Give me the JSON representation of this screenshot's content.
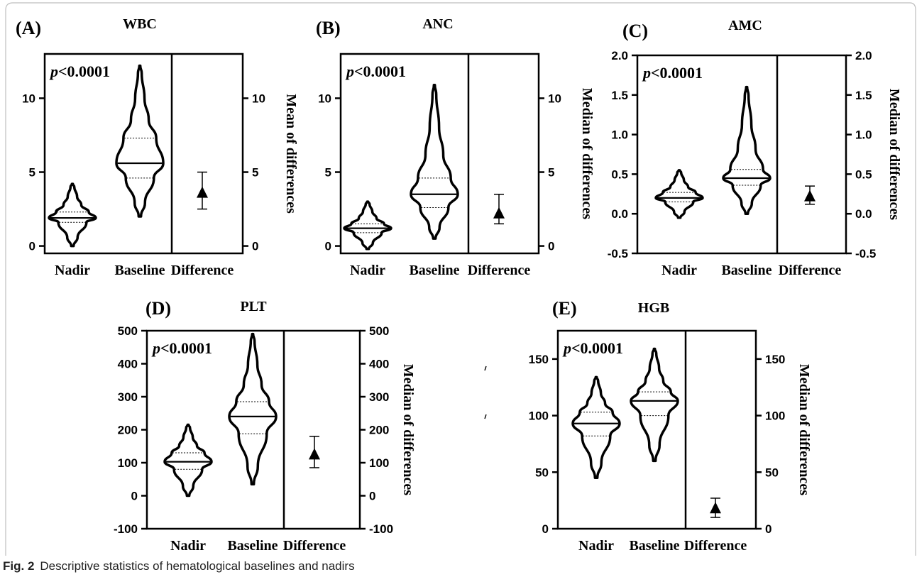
{
  "figure": {
    "caption_label": "Fig. 2",
    "caption_text": "Descriptive statistics of hematological baselines and nadirs"
  },
  "chart_data": [
    {
      "type": "violin",
      "panel": "(A)",
      "title": "WBC",
      "pvalue": "p<0.0001",
      "categories": [
        "Nadir",
        "Baseline",
        "Difference"
      ],
      "ylim": [
        -0.5,
        13
      ],
      "yticks": [
        0,
        5,
        10
      ],
      "right_ylabel": "Mean of differences",
      "violins": [
        {
          "name": "Nadir",
          "median": 1.9,
          "q1": 1.6,
          "q3": 2.3,
          "min": 0.0,
          "max": 4.2
        },
        {
          "name": "Baseline",
          "median": 5.6,
          "q1": 4.6,
          "q3": 7.3,
          "min": 2.0,
          "max": 12.2
        }
      ],
      "difference": {
        "mean": 3.6,
        "low": 2.5,
        "high": 5.0
      }
    },
    {
      "type": "violin",
      "panel": "(B)",
      "title": "ANC",
      "pvalue": "p<0.0001",
      "categories": [
        "Nadir",
        "Baseline",
        "Difference"
      ],
      "ylim": [
        -0.5,
        13
      ],
      "yticks": [
        0,
        5,
        10
      ],
      "right_ylabel": "Median of differences",
      "violins": [
        {
          "name": "Nadir",
          "median": 1.2,
          "q1": 0.9,
          "q3": 1.5,
          "min": -0.2,
          "max": 3.0
        },
        {
          "name": "Baseline",
          "median": 3.5,
          "q1": 2.6,
          "q3": 4.6,
          "min": 0.5,
          "max": 10.9
        }
      ],
      "difference": {
        "mean": 2.2,
        "low": 1.5,
        "high": 3.5
      }
    },
    {
      "type": "violin",
      "panel": "(C)",
      "title": "AMC",
      "pvalue": "p<0.0001",
      "categories": [
        "Nadir",
        "Baseline",
        "Difference"
      ],
      "ylim": [
        -0.5,
        2.0
      ],
      "yticks": [
        -0.5,
        0.0,
        0.5,
        1.0,
        1.5,
        2.0
      ],
      "right_ylabel": "Median of differences",
      "violins": [
        {
          "name": "Nadir",
          "median": 0.2,
          "q1": 0.15,
          "q3": 0.27,
          "min": -0.05,
          "max": 0.55
        },
        {
          "name": "Baseline",
          "median": 0.45,
          "q1": 0.36,
          "q3": 0.56,
          "min": 0.0,
          "max": 1.6
        }
      ],
      "difference": {
        "mean": 0.22,
        "low": 0.12,
        "high": 0.35
      }
    },
    {
      "type": "violin",
      "panel": "(D)",
      "title": "PLT",
      "pvalue": "p<0.0001",
      "categories": [
        "Nadir",
        "Baseline",
        "Difference"
      ],
      "ylim": [
        -100,
        500
      ],
      "yticks": [
        -100,
        0,
        100,
        200,
        300,
        400,
        500
      ],
      "right_ylabel": "Median of differences",
      "violins": [
        {
          "name": "Nadir",
          "median": 103,
          "q1": 80,
          "q3": 130,
          "min": 0,
          "max": 215
        },
        {
          "name": "Baseline",
          "median": 240,
          "q1": 188,
          "q3": 285,
          "min": 35,
          "max": 490
        }
      ],
      "difference": {
        "mean": 125,
        "low": 85,
        "high": 180
      }
    },
    {
      "type": "violin",
      "panel": "(E)",
      "title": "HGB",
      "pvalue": "p<0.0001",
      "categories": [
        "Nadir",
        "Baseline",
        "Difference"
      ],
      "ylim": [
        0,
        175
      ],
      "yticks": [
        0,
        50,
        100,
        150
      ],
      "right_ylabel": "Median of differences",
      "violins": [
        {
          "name": "Nadir",
          "median": 93,
          "q1": 82,
          "q3": 103,
          "min": 45,
          "max": 134
        },
        {
          "name": "Baseline",
          "median": 113,
          "q1": 100,
          "q3": 121,
          "min": 60,
          "max": 159
        }
      ],
      "difference": {
        "mean": 18,
        "low": 10,
        "high": 27
      }
    }
  ]
}
